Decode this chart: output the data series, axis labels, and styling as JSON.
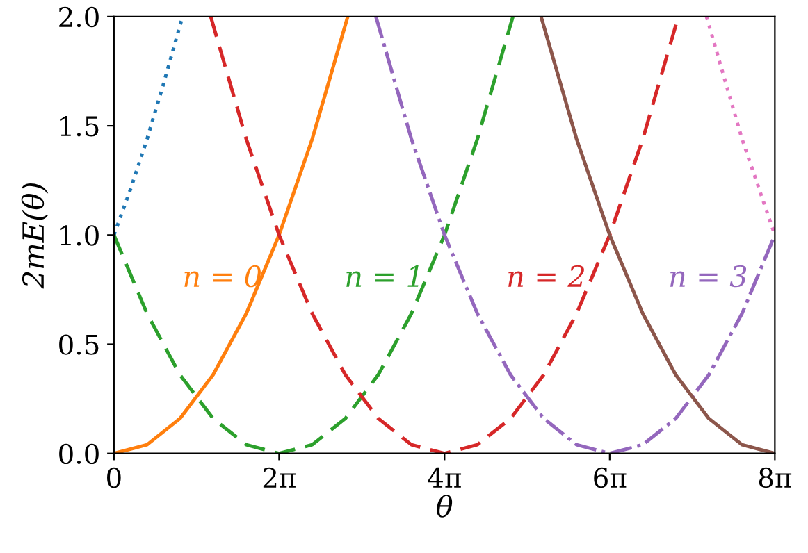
{
  "chart_data": {
    "type": "line",
    "xlabel": "θ",
    "ylabel": "2mE(θ)",
    "xlim": [
      0,
      25.13
    ],
    "ylim": [
      0,
      2.0
    ],
    "xticks": [
      0,
      {
        "value": 6.28,
        "label": "2π"
      },
      {
        "value": 12.57,
        "label": "4π"
      },
      {
        "value": 18.85,
        "label": "6π"
      },
      {
        "value": 25.13,
        "label": "8π"
      }
    ],
    "yticks": [
      {
        "value": 0,
        "label": "0.0"
      },
      {
        "value": 0.5,
        "label": "0.5"
      },
      {
        "value": 1,
        "label": "1.0"
      },
      {
        "value": 1.5,
        "label": "1.5"
      },
      {
        "value": 2,
        "label": "2.0"
      }
    ],
    "marker": "none",
    "series": [
      {
        "color": "#1f77b4",
        "line_style": "dotted",
        "x": [
          0,
          0.63,
          1.26,
          1.88,
          2.61
        ],
        "values": [
          1,
          1.21,
          1.44,
          1.69,
          2.0
        ]
      },
      {
        "color": "#ff7f0e",
        "line_style": "solid",
        "x": [
          0,
          1.26,
          2.51,
          3.77,
          5.03,
          6.28,
          7.54,
          8.89
        ],
        "values": [
          0,
          0.04,
          0.16,
          0.36,
          0.64,
          1.0,
          1.44,
          2.0
        ]
      },
      {
        "color": "#2ca02c",
        "line_style": "dashed",
        "x": [
          0,
          1.26,
          2.51,
          3.77,
          5.03,
          6.28,
          7.54,
          8.8,
          10.05,
          11.31,
          12.57,
          13.82,
          15.17
        ],
        "values": [
          1,
          0.64,
          0.36,
          0.16,
          0.04,
          0,
          0.04,
          0.16,
          0.36,
          0.64,
          1.0,
          1.44,
          2.0
        ]
      },
      {
        "color": "#d62728",
        "line_style": "dashed",
        "x": [
          3.68,
          5.03,
          6.28,
          7.54,
          8.8,
          10.05,
          11.31,
          12.57,
          13.82,
          15.08,
          16.34,
          17.59,
          18.85,
          20.11,
          21.46
        ],
        "values": [
          2.0,
          1.44,
          1.0,
          0.64,
          0.36,
          0.16,
          0.04,
          0,
          0.04,
          0.16,
          0.36,
          0.64,
          1,
          1.44,
          2.0
        ]
      },
      {
        "color": "#9467bd",
        "line_style": "dashdot",
        "x": [
          9.96,
          11.31,
          12.57,
          13.82,
          15.08,
          16.34,
          17.59,
          18.85,
          20.11,
          21.36,
          22.62,
          23.88,
          25.13
        ],
        "values": [
          2.0,
          1.44,
          1,
          0.64,
          0.36,
          0.16,
          0.04,
          0,
          0.04,
          0.16,
          0.36,
          0.64,
          1
        ]
      },
      {
        "color": "#8c564b",
        "line_style": "solid",
        "x": [
          16.24,
          17.59,
          18.85,
          20.11,
          21.36,
          22.62,
          23.88,
          25.13
        ],
        "values": [
          2.0,
          1.44,
          1,
          0.64,
          0.36,
          0.16,
          0.04,
          0
        ]
      },
      {
        "color": "#e377c2",
        "line_style": "dotted",
        "x": [
          22.53,
          23.88,
          25.13
        ],
        "values": [
          2.0,
          1.44,
          1
        ]
      }
    ],
    "annotations": [
      "n = 0",
      "n = 1",
      "n = 2",
      "n = 3"
    ]
  }
}
